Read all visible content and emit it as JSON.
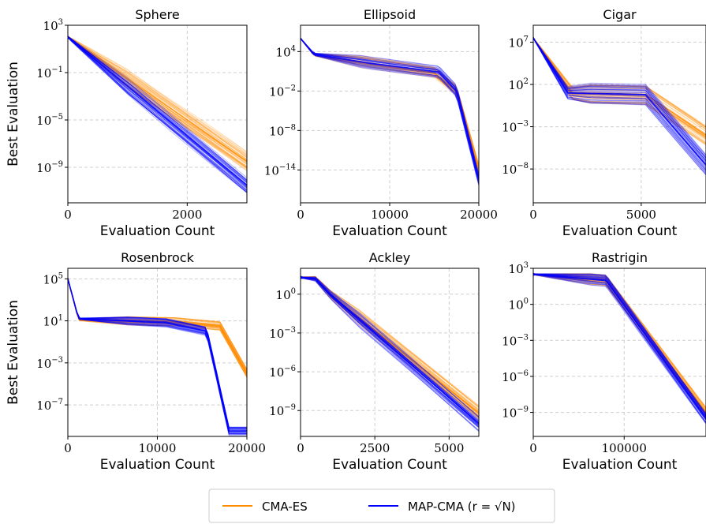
{
  "figure": {
    "ylabel": "Best Evaluation",
    "xlabel": "Evaluation Count",
    "legend": [
      {
        "label": "CMA-ES",
        "color": "#ff8c00"
      },
      {
        "label": "MAP-CMA (r = √N)",
        "color": "#0000ff"
      }
    ]
  },
  "chart_data": [
    {
      "type": "line",
      "title": "Sphere",
      "xlabel": "Evaluation Count",
      "ylabel": "Best Evaluation",
      "xlim": [
        0,
        3000
      ],
      "xticks": [
        0,
        2000
      ],
      "xticklabels": [
        "0",
        "2000"
      ],
      "yscale": "log",
      "ylim": [
        -12,
        3
      ],
      "yticks": [
        3,
        -1,
        -5,
        -9
      ],
      "yticklabels": [
        "10^3",
        "10^-1",
        "10^-5",
        "10^-9"
      ],
      "grid": true,
      "series": [
        {
          "name": "CMA-ES",
          "color": "#ff8c00",
          "runs": 40,
          "spread": 0.8,
          "waviness": 0.5,
          "x": [
            0,
            3000
          ],
          "y": [
            2,
            -8.5
          ]
        },
        {
          "name": "MAP-CMA (r = √N)",
          "color": "#0000ff",
          "runs": 40,
          "spread": 0.7,
          "waviness": 0.5,
          "x": [
            0,
            3000
          ],
          "y": [
            2,
            -10.5
          ]
        }
      ]
    },
    {
      "type": "line",
      "title": "Ellipsoid",
      "xlabel": "Evaluation Count",
      "ylabel": "",
      "xlim": [
        0,
        20000
      ],
      "xticks": [
        0,
        10000,
        20000
      ],
      "xticklabels": [
        "0",
        "10000",
        "20000"
      ],
      "yscale": "log",
      "ylim": [
        -19,
        8
      ],
      "yticks": [
        4,
        -2,
        -8,
        -14
      ],
      "yticklabels": [
        "10^4",
        "10^-2",
        "10^-8",
        "10^-14"
      ],
      "grid": true,
      "series": [
        {
          "name": "CMA-ES",
          "color": "#ff8c00",
          "runs": 30,
          "spread": 0.9,
          "waviness": 0.4,
          "x": [
            0,
            1500,
            8000,
            15000,
            17500,
            20000
          ],
          "y": [
            6,
            3.5,
            2.2,
            0.8,
            -2,
            -14
          ]
        },
        {
          "name": "MAP-CMA (r = √N)",
          "color": "#0000ff",
          "runs": 30,
          "spread": 0.9,
          "waviness": 0.4,
          "x": [
            0,
            1500,
            8000,
            15500,
            17500,
            20000
          ],
          "y": [
            6,
            3.6,
            2.2,
            0.9,
            -2,
            -15.5
          ]
        }
      ]
    },
    {
      "type": "line",
      "title": "Cigar",
      "xlabel": "Evaluation Count",
      "ylabel": "",
      "xlim": [
        0,
        8000
      ],
      "xticks": [
        0,
        5000
      ],
      "xticklabels": [
        "0",
        "5000"
      ],
      "yscale": "log",
      "ylim": [
        -12,
        9
      ],
      "yticks": [
        7,
        2,
        -3,
        -8
      ],
      "yticklabels": [
        "10^7",
        "10^2",
        "10^-3",
        "10^-8"
      ],
      "grid": true,
      "series": [
        {
          "name": "CMA-ES",
          "color": "#ff8c00",
          "runs": 40,
          "spread": 1.2,
          "waviness": 0.3,
          "x": [
            0,
            1800,
            5200,
            8000
          ],
          "y": [
            7.5,
            1,
            0.8,
            -4
          ]
        },
        {
          "name": "MAP-CMA (r = √N)",
          "color": "#0000ff",
          "runs": 40,
          "spread": 1.2,
          "waviness": 0.3,
          "x": [
            0,
            1600,
            5200,
            8000
          ],
          "y": [
            7.5,
            1,
            0.8,
            -7.5
          ]
        }
      ]
    },
    {
      "type": "line",
      "title": "Rosenbrock",
      "xlabel": "Evaluation Count",
      "ylabel": "Best Evaluation",
      "xlim": [
        0,
        20000
      ],
      "xticks": [
        0,
        10000,
        20000
      ],
      "xticklabels": [
        "0",
        "10000",
        "20000"
      ],
      "yscale": "log",
      "ylim": [
        -10,
        6
      ],
      "yticks": [
        5,
        1,
        -3,
        -7
      ],
      "yticklabels": [
        "10^5",
        "10^1",
        "10^-3",
        "10^-7"
      ],
      "grid": true,
      "series": [
        {
          "name": "CMA-ES",
          "color": "#ff8c00",
          "runs": 40,
          "spread": 0.4,
          "waviness": 0.2,
          "x": [
            0,
            1200,
            12000,
            17000,
            20000
          ],
          "y": [
            5,
            1.1,
            0.9,
            0.5,
            -4
          ]
        },
        {
          "name": "MAP-CMA (r = √N)",
          "color": "#0000ff",
          "runs": 40,
          "spread": 0.4,
          "waviness": 0.2,
          "x": [
            0,
            1200,
            11000,
            15500,
            18000
          ],
          "y": [
            5,
            1.2,
            0.8,
            0,
            -9.5
          ]
        }
      ]
    },
    {
      "type": "line",
      "title": "Ackley",
      "xlabel": "Evaluation Count",
      "ylabel": "",
      "xlim": [
        0,
        6000
      ],
      "xticks": [
        0,
        2500,
        5000
      ],
      "xticklabels": [
        "0",
        "2500",
        "5000"
      ],
      "yscale": "log",
      "ylim": [
        -11,
        2
      ],
      "yticks": [
        0,
        -3,
        -6,
        -9
      ],
      "yticklabels": [
        "10^0",
        "10^-3",
        "10^-6",
        "10^-9"
      ],
      "grid": true,
      "series": [
        {
          "name": "CMA-ES",
          "color": "#ff8c00",
          "runs": 40,
          "spread": 0.6,
          "waviness": 0.3,
          "x": [
            0,
            500,
            1000,
            6000
          ],
          "y": [
            1.3,
            1.2,
            0,
            -9.2
          ]
        },
        {
          "name": "MAP-CMA (r = √N)",
          "color": "#0000ff",
          "runs": 40,
          "spread": 0.6,
          "waviness": 0.3,
          "x": [
            0,
            500,
            1000,
            6000
          ],
          "y": [
            1.3,
            1.2,
            0,
            -10
          ]
        }
      ]
    },
    {
      "type": "line",
      "title": "Rastrigin",
      "xlabel": "Evaluation Count",
      "ylabel": "",
      "xlim": [
        0,
        190000
      ],
      "xticks": [
        0,
        100000
      ],
      "xticklabels": [
        "0",
        "100000"
      ],
      "yscale": "log",
      "ylim": [
        -11,
        3
      ],
      "yticks": [
        3,
        0,
        -3,
        -6,
        -9
      ],
      "yticklabels": [
        "10^3",
        "10^0",
        "10^-3",
        "10^-6",
        "10^-9"
      ],
      "grid": true,
      "series": [
        {
          "name": "CMA-ES",
          "color": "#ff8c00",
          "runs": 40,
          "spread": 0.5,
          "waviness": 0.3,
          "x": [
            0,
            80000,
            190000
          ],
          "y": [
            2.5,
            2,
            -9
          ]
        },
        {
          "name": "MAP-CMA (r = √N)",
          "color": "#0000ff",
          "runs": 40,
          "spread": 0.5,
          "waviness": 0.3,
          "x": [
            0,
            80000,
            190000
          ],
          "y": [
            2.5,
            2,
            -9.5
          ]
        }
      ]
    }
  ]
}
